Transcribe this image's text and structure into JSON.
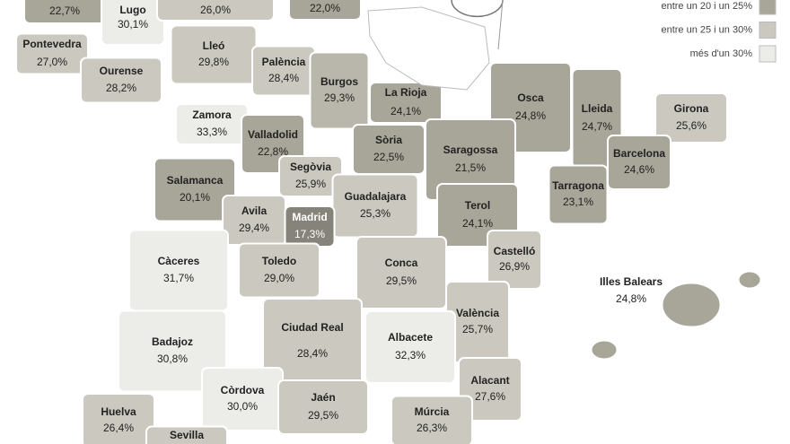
{
  "legend": [
    {
      "label": "entre un 20 i un 25%",
      "color": "#a8a599"
    },
    {
      "label": "entre un 25 i un 30%",
      "color": "#cac8bf"
    },
    {
      "label": "més d'un 30%",
      "color": "#ececE8"
    }
  ],
  "provinces": [
    {
      "name": null,
      "value": "22,7%",
      "color": "#a8a599"
    },
    {
      "name": "Lugo",
      "value": "30,1%",
      "color": "#ecece8"
    },
    {
      "name": null,
      "value": "26,0%",
      "color": "#cac8bf"
    },
    {
      "name": null,
      "value": "22,0%",
      "color": "#a8a599"
    },
    {
      "name": "Pontevedra",
      "value": "27,0%",
      "color": "#cac8bf"
    },
    {
      "name": "Ourense",
      "value": "28,2%",
      "color": "#cac8bf"
    },
    {
      "name": "Lleó",
      "value": "29,8%",
      "color": "#cac8bf"
    },
    {
      "name": "Palència",
      "value": "28,4%",
      "color": "#cac8bf"
    },
    {
      "name": "Burgos",
      "value": "29,3%",
      "color": "#b9b6ab"
    },
    {
      "name": "La Rioja",
      "value": "24,1%",
      "color": "#a8a599"
    },
    {
      "name": "Osca",
      "value": "24,8%",
      "color": "#a8a599"
    },
    {
      "name": "Lleida",
      "value": "24,7%",
      "color": "#a8a599"
    },
    {
      "name": "Girona",
      "value": "25,6%",
      "color": "#cac8bf"
    },
    {
      "name": "Zamora",
      "value": "33,3%",
      "color": "#ecece8"
    },
    {
      "name": "Valladolid",
      "value": "22,8%",
      "color": "#a8a599"
    },
    {
      "name": "Sòria",
      "value": "22,5%",
      "color": "#a8a599"
    },
    {
      "name": "Saragossa",
      "value": "21,5%",
      "color": "#a8a599"
    },
    {
      "name": "Barcelona",
      "value": "24,6%",
      "color": "#a8a599"
    },
    {
      "name": "Segòvia",
      "value": "25,9%",
      "color": "#cac8bf"
    },
    {
      "name": "Salamanca",
      "value": "20,1%",
      "color": "#a8a599"
    },
    {
      "name": "Tarragona",
      "value": "23,1%",
      "color": "#a8a599"
    },
    {
      "name": "Guadalajara",
      "value": "25,3%",
      "color": "#cac8bf"
    },
    {
      "name": "Avila",
      "value": "29,4%",
      "color": "#cac8bf"
    },
    {
      "name": "Madrid",
      "value": "17,3%",
      "color": "#86837a"
    },
    {
      "name": "Terol",
      "value": "24,1%",
      "color": "#a8a599"
    },
    {
      "name": "Castelló",
      "value": "26,9%",
      "color": "#cac8bf"
    },
    {
      "name": "Càceres",
      "value": "31,7%",
      "color": "#ecece8"
    },
    {
      "name": "Toledo",
      "value": "29,0%",
      "color": "#cac8bf"
    },
    {
      "name": "Conca",
      "value": "29,5%",
      "color": "#cac8bf"
    },
    {
      "name": "Illes Balears",
      "value": "24,8%",
      "color": "#a8a599"
    },
    {
      "name": "València",
      "value": "25,7%",
      "color": "#cac8bf"
    },
    {
      "name": "Ciudad Real",
      "value": "28,4%",
      "color": "#cac8bf"
    },
    {
      "name": "Badajoz",
      "value": "30,8%",
      "color": "#ecece8"
    },
    {
      "name": "Albacete",
      "value": "32,3%",
      "color": "#ecece8"
    },
    {
      "name": "Alacant",
      "value": "27,6%",
      "color": "#cac8bf"
    },
    {
      "name": "Còrdova",
      "value": "30,0%",
      "color": "#ecece8"
    },
    {
      "name": "Jaén",
      "value": "29,5%",
      "color": "#cac8bf"
    },
    {
      "name": "Huelva",
      "value": "26,4%",
      "color": "#cac8bf"
    },
    {
      "name": "Múrcia",
      "value": "26,3%",
      "color": "#cac8bf"
    },
    {
      "name": "Sevilla",
      "value": null,
      "color": "#cac8bf"
    }
  ]
}
